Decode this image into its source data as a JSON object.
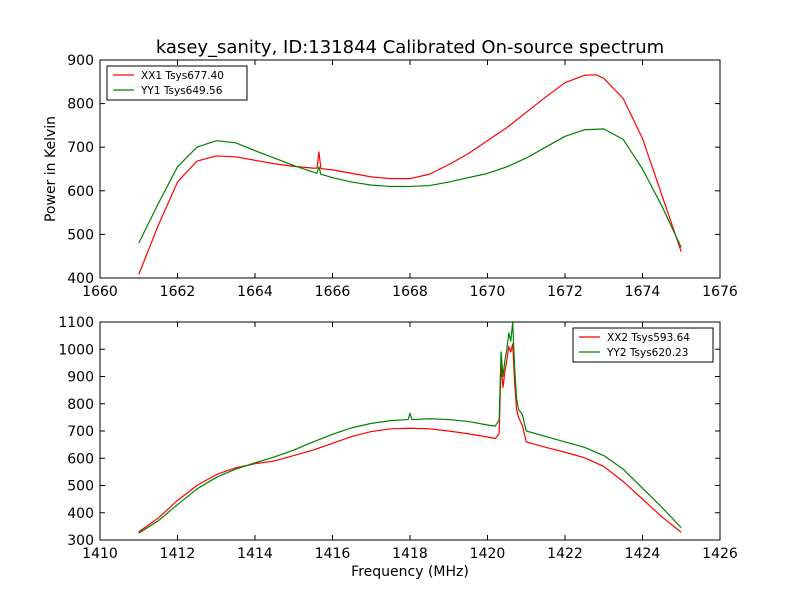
{
  "title": "kasey_sanity, ID:131844 Calibrated On-source spectrum",
  "chart_data": [
    {
      "type": "line",
      "ylabel": "Power in Kelvin",
      "xlabel": "",
      "xlim": [
        1660,
        1676
      ],
      "ylim": [
        400,
        900
      ],
      "xticks": [
        1660,
        1662,
        1664,
        1666,
        1668,
        1670,
        1672,
        1674,
        1676
      ],
      "yticks": [
        400,
        500,
        600,
        700,
        800,
        900
      ],
      "legend_position": "top-left",
      "series": [
        {
          "name": "XX1 Tsys677.40",
          "color": "#ff0000",
          "x": [
            1661.0,
            1661.5,
            1662.0,
            1662.5,
            1663.0,
            1663.5,
            1664.0,
            1664.5,
            1665.0,
            1665.5,
            1665.6,
            1665.65,
            1665.7,
            1666.0,
            1666.5,
            1667.0,
            1667.5,
            1668.0,
            1668.5,
            1669.0,
            1669.5,
            1670.0,
            1670.5,
            1671.0,
            1671.5,
            1672.0,
            1672.5,
            1672.8,
            1673.0,
            1673.5,
            1674.0,
            1674.5,
            1675.0
          ],
          "y": [
            408,
            520,
            620,
            668,
            680,
            678,
            670,
            662,
            656,
            652,
            652,
            689,
            651,
            648,
            640,
            632,
            628,
            628,
            638,
            660,
            685,
            715,
            745,
            780,
            815,
            848,
            865,
            866,
            858,
            812,
            720,
            590,
            460
          ]
        },
        {
          "name": "YY1 Tsys649.56",
          "color": "#008000",
          "x": [
            1661.0,
            1661.5,
            1662.0,
            1662.5,
            1663.0,
            1663.5,
            1664.0,
            1664.5,
            1665.0,
            1665.5,
            1665.6,
            1665.65,
            1665.7,
            1666.0,
            1666.5,
            1667.0,
            1667.5,
            1668.0,
            1668.5,
            1669.0,
            1669.5,
            1670.0,
            1670.5,
            1671.0,
            1671.5,
            1672.0,
            1672.5,
            1673.0,
            1673.5,
            1674.0,
            1674.5,
            1675.0
          ],
          "y": [
            480,
            570,
            655,
            700,
            715,
            710,
            692,
            675,
            658,
            643,
            640,
            655,
            638,
            630,
            620,
            613,
            610,
            610,
            612,
            620,
            630,
            640,
            655,
            675,
            700,
            725,
            740,
            742,
            718,
            650,
            565,
            470
          ]
        }
      ]
    },
    {
      "type": "line",
      "ylabel": "",
      "xlabel": "Frequency (MHz)",
      "xlim": [
        1410,
        1426
      ],
      "ylim": [
        300,
        1100
      ],
      "xticks": [
        1410,
        1412,
        1414,
        1416,
        1418,
        1420,
        1422,
        1424,
        1426
      ],
      "yticks": [
        300,
        400,
        500,
        600,
        700,
        800,
        900,
        1000,
        1100
      ],
      "legend_position": "top-right",
      "series": [
        {
          "name": "XX2 Tsys593.64",
          "color": "#ff0000",
          "x": [
            1411.0,
            1411.5,
            1412.0,
            1412.5,
            1413.0,
            1413.5,
            1414.0,
            1414.5,
            1415.0,
            1415.5,
            1416.0,
            1416.5,
            1417.0,
            1417.5,
            1418.0,
            1418.5,
            1419.0,
            1419.5,
            1420.0,
            1420.2,
            1420.3,
            1420.35,
            1420.4,
            1420.45,
            1420.5,
            1420.55,
            1420.6,
            1420.65,
            1420.7,
            1420.75,
            1420.8,
            1420.9,
            1421.0,
            1421.5,
            1422.0,
            1422.5,
            1423.0,
            1423.5,
            1424.0,
            1424.5,
            1425.0
          ],
          "y": [
            330,
            380,
            445,
            500,
            540,
            565,
            580,
            590,
            610,
            630,
            655,
            680,
            698,
            708,
            710,
            708,
            700,
            690,
            678,
            672,
            690,
            940,
            860,
            920,
            960,
            1010,
            990,
            1020,
            880,
            780,
            750,
            720,
            660,
            640,
            622,
            602,
            570,
            515,
            450,
            385,
            328
          ]
        },
        {
          "name": "YY2 Tsys620.23",
          "color": "#008000",
          "x": [
            1411.0,
            1411.5,
            1412.0,
            1412.5,
            1413.0,
            1413.5,
            1414.0,
            1414.5,
            1415.0,
            1415.5,
            1416.0,
            1416.5,
            1417.0,
            1417.5,
            1417.95,
            1418.0,
            1418.05,
            1418.5,
            1419.0,
            1419.5,
            1420.0,
            1420.2,
            1420.3,
            1420.35,
            1420.4,
            1420.45,
            1420.5,
            1420.55,
            1420.6,
            1420.65,
            1420.7,
            1420.75,
            1420.8,
            1420.9,
            1421.0,
            1421.5,
            1422.0,
            1422.5,
            1423.0,
            1423.5,
            1424.0,
            1424.5,
            1425.0
          ],
          "y": [
            325,
            370,
            430,
            487,
            530,
            560,
            583,
            605,
            630,
            660,
            688,
            712,
            728,
            738,
            742,
            765,
            742,
            745,
            742,
            735,
            722,
            718,
            740,
            990,
            900,
            960,
            1000,
            1060,
            1030,
            1100,
            930,
            820,
            780,
            760,
            700,
            680,
            660,
            640,
            610,
            560,
            490,
            420,
            345
          ]
        }
      ]
    }
  ]
}
